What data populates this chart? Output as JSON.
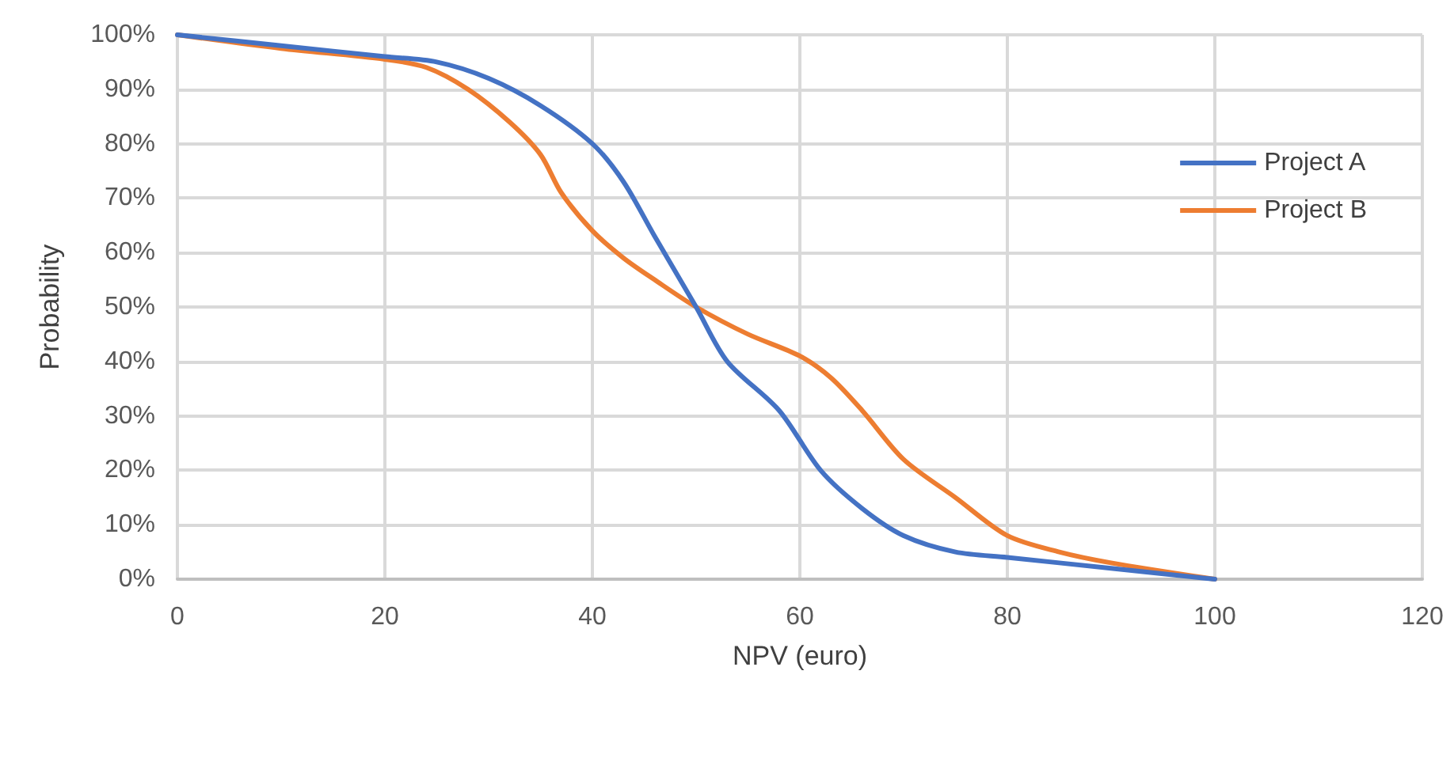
{
  "chart_data": {
    "type": "line",
    "xlabel": "NPV (euro)",
    "ylabel": "Probability",
    "xlim": [
      0,
      120
    ],
    "xticks": [
      0,
      20,
      40,
      60,
      80,
      100,
      120
    ],
    "ylim": [
      0,
      100
    ],
    "yticks": [
      {
        "value": 0,
        "label": "0%"
      },
      {
        "value": 10,
        "label": "10%"
      },
      {
        "value": 20,
        "label": "20%"
      },
      {
        "value": 30,
        "label": "30%"
      },
      {
        "value": 40,
        "label": "40%"
      },
      {
        "value": 50,
        "label": "50%"
      },
      {
        "value": 60,
        "label": "60%"
      },
      {
        "value": 70,
        "label": "70%"
      },
      {
        "value": 80,
        "label": "80%"
      },
      {
        "value": 90,
        "label": "90%"
      },
      {
        "value": 100,
        "label": "100%"
      }
    ],
    "grid": true,
    "legend": "right",
    "marker": "none",
    "line_style": "solid",
    "series": [
      {
        "name": "Project A",
        "color": "#4472c4",
        "x": [
          0,
          10,
          20,
          25,
          30,
          35,
          40,
          43,
          46,
          50,
          53,
          58,
          62,
          66,
          70,
          75,
          80,
          90,
          100
        ],
        "values": [
          100,
          98,
          96,
          95,
          92,
          87,
          80,
          73,
          63,
          50,
          40,
          31,
          20,
          13,
          8,
          5,
          4,
          2,
          0
        ]
      },
      {
        "name": "Project B",
        "color": "#ed7d31",
        "x": [
          0,
          10,
          20,
          24,
          28,
          32,
          35,
          37,
          40,
          43,
          46,
          50,
          55,
          60,
          63,
          66,
          70,
          75,
          80,
          85,
          90,
          100
        ],
        "values": [
          100,
          97.5,
          95.5,
          94,
          90,
          84,
          78,
          71,
          64,
          59,
          55,
          50,
          45,
          41,
          37,
          31,
          22,
          15,
          8,
          5,
          3,
          0
        ]
      }
    ]
  }
}
